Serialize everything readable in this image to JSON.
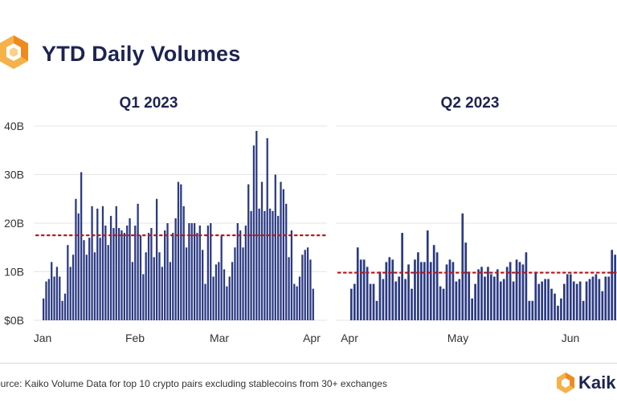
{
  "header": {
    "title": "YTD Daily Volumes",
    "logo_icon": "kaiko-hexagon-logo-icon"
  },
  "colors": {
    "bar": "#2b3a82",
    "average_line": "#c0161b",
    "grid": "#e6e6e6",
    "title": "#1d2452",
    "logo_orange": "#f39a1f"
  },
  "footer": {
    "source": "ource: Kaiko Volume Data for top 10 crypto pairs excluding stablecoins from 30+ exchanges",
    "brand": "Kaik",
    "brand_icon": "kaiko-hexagon-icon"
  },
  "chart_data": [
    {
      "type": "bar",
      "title": "Q1 2023",
      "xlabel": "",
      "ylabel": "",
      "x_ticks": [
        "Jan",
        "Feb",
        "Mar",
        "Apr"
      ],
      "y_ticks": [
        "$0B",
        "10B",
        "20B",
        "30B",
        "40B"
      ],
      "ylim": [
        0,
        40
      ],
      "grid": true,
      "average_line": 17.5,
      "values": [
        4.5,
        8,
        8.5,
        12,
        9,
        11,
        9,
        4,
        5.5,
        15.5,
        11,
        13.5,
        25,
        22,
        30.5,
        16.5,
        13.5,
        17,
        23.5,
        14,
        23,
        17,
        23.5,
        19.5,
        15.5,
        21.5,
        19,
        23.5,
        19,
        18.5,
        18,
        19.5,
        21,
        12,
        19.5,
        24,
        17.5,
        9.5,
        14,
        18,
        19,
        13,
        25,
        14,
        11,
        18.5,
        20,
        12,
        18,
        21,
        28.5,
        28,
        23.5,
        15,
        20,
        20,
        20,
        18,
        19.5,
        14.5,
        7.5,
        19.5,
        20,
        9,
        11.5,
        12,
        17.5,
        10.5,
        7,
        9,
        12,
        15,
        20,
        18.5,
        15,
        19.5,
        28,
        22.5,
        36,
        39,
        23,
        28.5,
        22.5,
        37.5,
        23,
        22.5,
        30,
        21.5,
        28.5,
        27,
        24,
        13,
        18.5,
        7.5,
        7,
        9,
        13.5,
        14.5,
        15,
        12.5,
        6.5
      ]
    },
    {
      "type": "bar",
      "title": "Q2 2023",
      "xlabel": "",
      "ylabel": "",
      "x_ticks": [
        "Apr",
        "May",
        "Jun"
      ],
      "ylim": [
        0,
        40
      ],
      "grid": true,
      "average_line": 9.8,
      "values": [
        6.5,
        7.5,
        15,
        12.5,
        12.5,
        11,
        7.5,
        7.5,
        4,
        10,
        8.5,
        12,
        13,
        12.5,
        8,
        9,
        18,
        8.5,
        11.5,
        6.5,
        12.5,
        14,
        12,
        12,
        18.5,
        12,
        15.5,
        14,
        7,
        6.5,
        11.5,
        12.5,
        12,
        8,
        8.5,
        22,
        16,
        10,
        4.5,
        7.5,
        10.5,
        11,
        9,
        11,
        9.5,
        9,
        10.5,
        8,
        8.5,
        11,
        12,
        8,
        12.5,
        12,
        11.5,
        14,
        4,
        4,
        10,
        7.5,
        8,
        8.5,
        8.5,
        6.5,
        5.5,
        3,
        4.5,
        7.5,
        9.5,
        9.5,
        8,
        7.5,
        8,
        4,
        8,
        8.5,
        9,
        9.5,
        8.5,
        6,
        9,
        9,
        14.5,
        13.5,
        6.5,
        7,
        7,
        15.5,
        4.5,
        4
      ]
    }
  ]
}
